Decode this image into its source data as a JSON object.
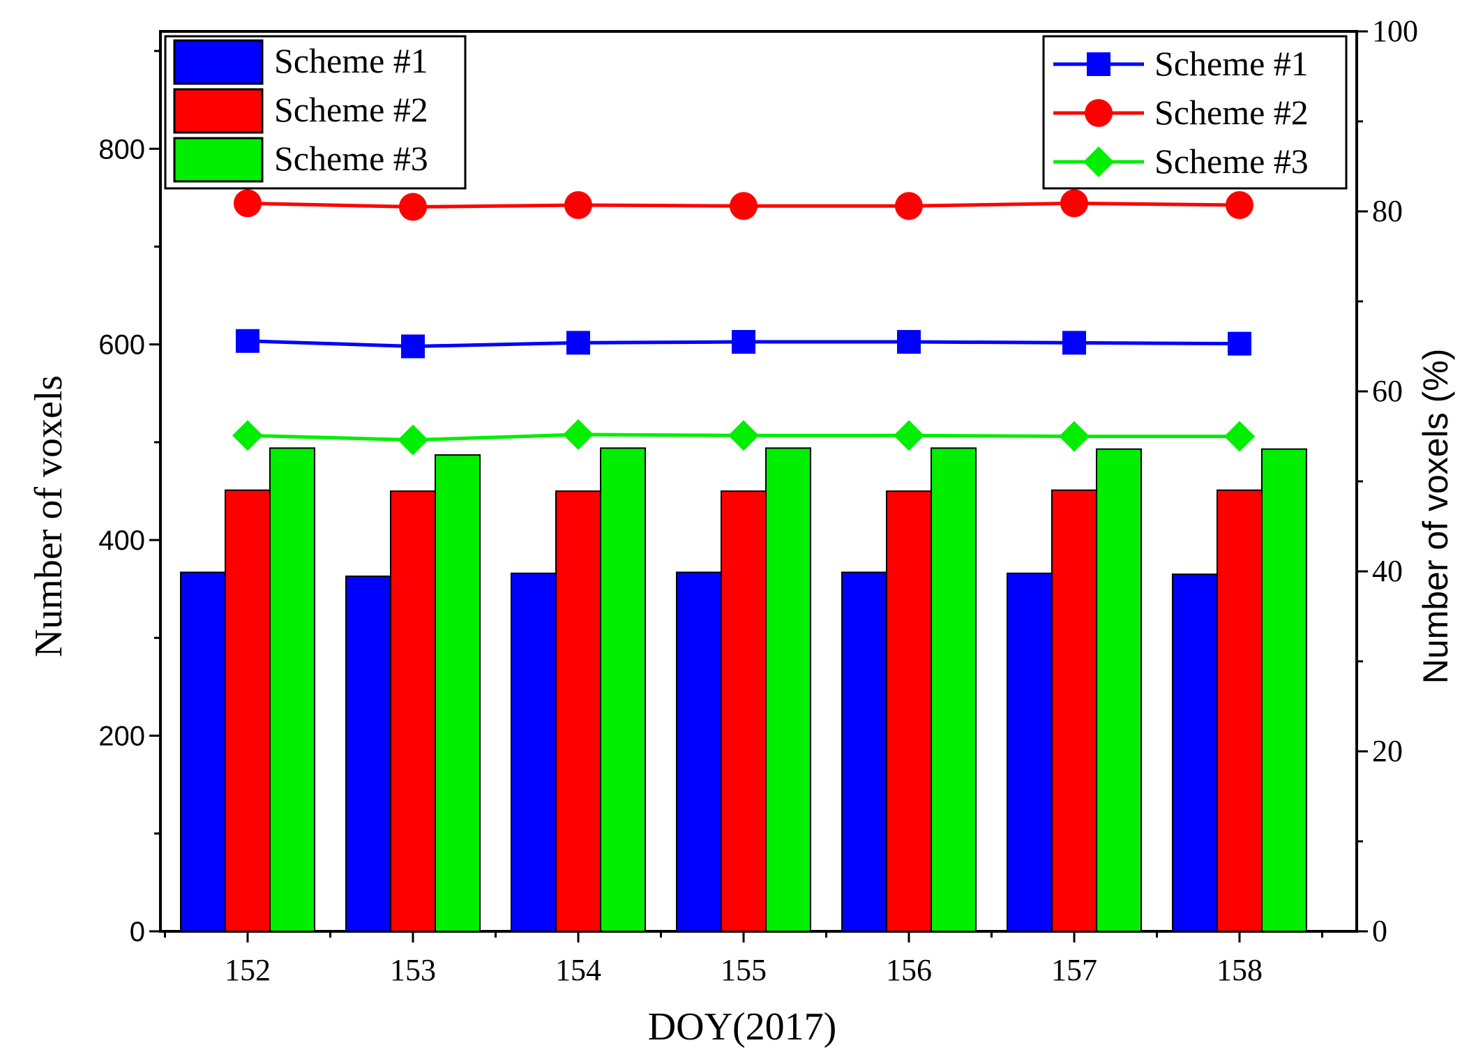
{
  "chart_data": {
    "type": "bar",
    "title": "",
    "xlabel": "DOY(2017)",
    "ylabel": "Number of voxels",
    "y2label": "Number of voxels (%)",
    "categories": [
      "152",
      "153",
      "154",
      "155",
      "156",
      "157",
      "158"
    ],
    "ylim": [
      0,
      920
    ],
    "y2lim": [
      0,
      100
    ],
    "yticks": [
      "0",
      "200",
      "400",
      "600",
      "800"
    ],
    "y2ticks": [
      "0",
      "20",
      "40",
      "60",
      "80",
      "100"
    ],
    "series": [
      {
        "name": "Scheme #1",
        "axis": "left",
        "kind": "bar",
        "color": "#0000ff",
        "values": [
          367,
          363,
          366,
          367,
          367,
          366,
          365
        ]
      },
      {
        "name": "Scheme #2",
        "axis": "left",
        "kind": "bar",
        "color": "#ff0000",
        "values": [
          451,
          450,
          450,
          450,
          450,
          451,
          451
        ]
      },
      {
        "name": "Scheme #3",
        "axis": "left",
        "kind": "bar",
        "color": "#00ee00",
        "values": [
          494,
          487,
          494,
          494,
          494,
          493,
          493
        ]
      }
    ],
    "line_series": [
      {
        "name": "Scheme #1",
        "axis": "right",
        "kind": "line",
        "marker": "square",
        "color": "#0000ff",
        "values": [
          65.6,
          65.0,
          65.4,
          65.5,
          65.5,
          65.4,
          65.3
        ]
      },
      {
        "name": "Scheme #2",
        "axis": "right",
        "kind": "line",
        "marker": "circle",
        "color": "#ff0000",
        "values": [
          80.9,
          80.5,
          80.7,
          80.6,
          80.6,
          80.9,
          80.7
        ]
      },
      {
        "name": "Scheme #3",
        "axis": "right",
        "kind": "line",
        "marker": "diamond",
        "color": "#00ee00",
        "values": [
          55.1,
          54.6,
          55.2,
          55.1,
          55.1,
          55.0,
          55.0
        ]
      }
    ],
    "legend_bars_position": "top-left",
    "legend_lines_position": "top-right"
  }
}
